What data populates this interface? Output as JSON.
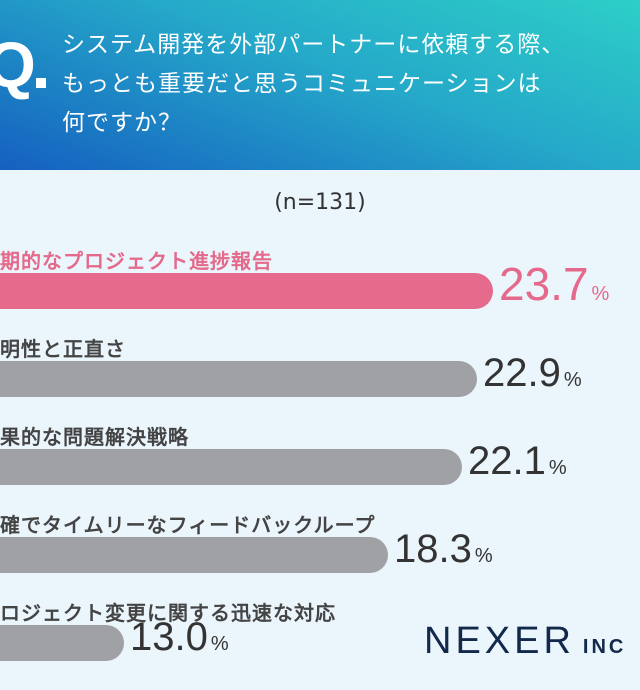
{
  "header": {
    "q": "Q",
    "question": "システム開発を外部パートナーに依頼する際、\nもっとも重要だと思うコミュニケーションは\n何ですか？"
  },
  "chart_data": {
    "type": "bar",
    "orientation": "horizontal",
    "n_label": "(n=131)",
    "unit": "%",
    "categories": [
      "期的なプロジェクト進捗報告",
      "明性と正直さ",
      "果的な問題解決戦略",
      "確でタイムリーなフィードバックループ",
      "ロジェクト変更に関する迅速な対応"
    ],
    "values": [
      23.7,
      22.9,
      22.1,
      18.3,
      13.0
    ],
    "value_labels": [
      "23.7",
      "22.9",
      "22.1",
      "18.3",
      "13.0"
    ],
    "highlight_color": "#e66a8b",
    "bar_color": "#a0a1a5"
  },
  "logo": {
    "name": "NEXER",
    "suffix": "INC"
  }
}
